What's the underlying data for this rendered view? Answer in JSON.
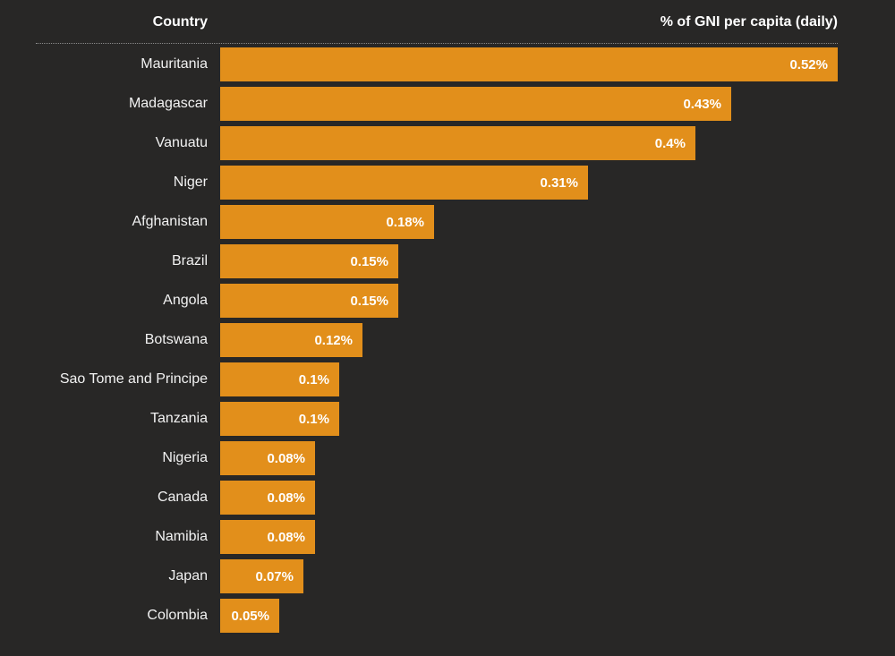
{
  "header": {
    "country_label": "Country",
    "value_label": "% of GNI per capita (daily)"
  },
  "colors": {
    "background": "#282726",
    "bar": "#e28f1b",
    "text": "#ffffff",
    "separator": "#8b8b8b"
  },
  "chart_data": {
    "type": "bar",
    "orientation": "horizontal",
    "title": "",
    "xlabel": "% of GNI per capita (daily)",
    "ylabel": "Country",
    "xlim": [
      0,
      0.52
    ],
    "grid": false,
    "legend": "none",
    "bar_color": "#e28f1b",
    "categories": [
      "Mauritania",
      "Madagascar",
      "Vanuatu",
      "Niger",
      "Afghanistan",
      "Brazil",
      "Angola",
      "Botswana",
      "Sao Tome and Principe",
      "Tanzania",
      "Nigeria",
      "Canada",
      "Namibia",
      "Japan",
      "Colombia"
    ],
    "values": [
      0.52,
      0.43,
      0.4,
      0.31,
      0.18,
      0.15,
      0.15,
      0.12,
      0.1,
      0.1,
      0.08,
      0.08,
      0.08,
      0.07,
      0.05
    ],
    "value_labels": [
      "0.52%",
      "0.43%",
      "0.4%",
      "0.31%",
      "0.18%",
      "0.15%",
      "0.15%",
      "0.12%",
      "0.1%",
      "0.1%",
      "0.08%",
      "0.08%",
      "0.08%",
      "0.07%",
      "0.05%"
    ]
  }
}
